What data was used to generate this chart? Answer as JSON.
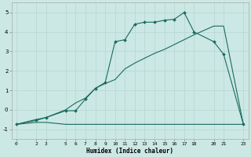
{
  "xlabel": "Humidex (Indice chaleur)",
  "bg_color": "#cce8e4",
  "grid_color": "#b8d8d4",
  "line_color": "#1a6b5e",
  "xlim": [
    -0.5,
    23.5
  ],
  "ylim": [
    -1.5,
    5.5
  ],
  "xticks": [
    0,
    2,
    3,
    5,
    6,
    7,
    8,
    9,
    10,
    11,
    12,
    13,
    14,
    15,
    16,
    17,
    18,
    20,
    21,
    23
  ],
  "yticks": [
    -1,
    0,
    1,
    2,
    3,
    4,
    5
  ],
  "line1_x": [
    0,
    2,
    3,
    5,
    6,
    7,
    8,
    9,
    10,
    11,
    12,
    13,
    14,
    15,
    16,
    17,
    18,
    20,
    21,
    23
  ],
  "line1_y": [
    -0.75,
    -0.65,
    -0.65,
    -0.75,
    -0.75,
    -0.75,
    -0.75,
    -0.75,
    -0.75,
    -0.75,
    -0.75,
    -0.75,
    -0.75,
    -0.75,
    -0.75,
    -0.75,
    -0.75,
    -0.75,
    -0.75,
    -0.75
  ],
  "line2_x": [
    0,
    2,
    3,
    5,
    6,
    7,
    8,
    9,
    10,
    11,
    12,
    13,
    14,
    15,
    16,
    17,
    18,
    20,
    21,
    23
  ],
  "line2_y": [
    -0.75,
    -0.5,
    -0.4,
    0.0,
    0.35,
    0.6,
    1.1,
    1.35,
    1.55,
    2.1,
    2.4,
    2.65,
    2.9,
    3.1,
    3.35,
    3.6,
    3.85,
    4.3,
    4.3,
    -0.75
  ],
  "line3_x": [
    0,
    2,
    3,
    5,
    6,
    7,
    8,
    9,
    10,
    11,
    12,
    13,
    14,
    15,
    16,
    17,
    18,
    20,
    21,
    23
  ],
  "line3_y": [
    -0.75,
    -0.55,
    -0.4,
    -0.05,
    -0.05,
    0.55,
    1.1,
    1.4,
    3.5,
    3.6,
    4.4,
    4.5,
    4.5,
    4.6,
    4.65,
    5.0,
    4.0,
    3.5,
    2.85,
    -0.75
  ]
}
